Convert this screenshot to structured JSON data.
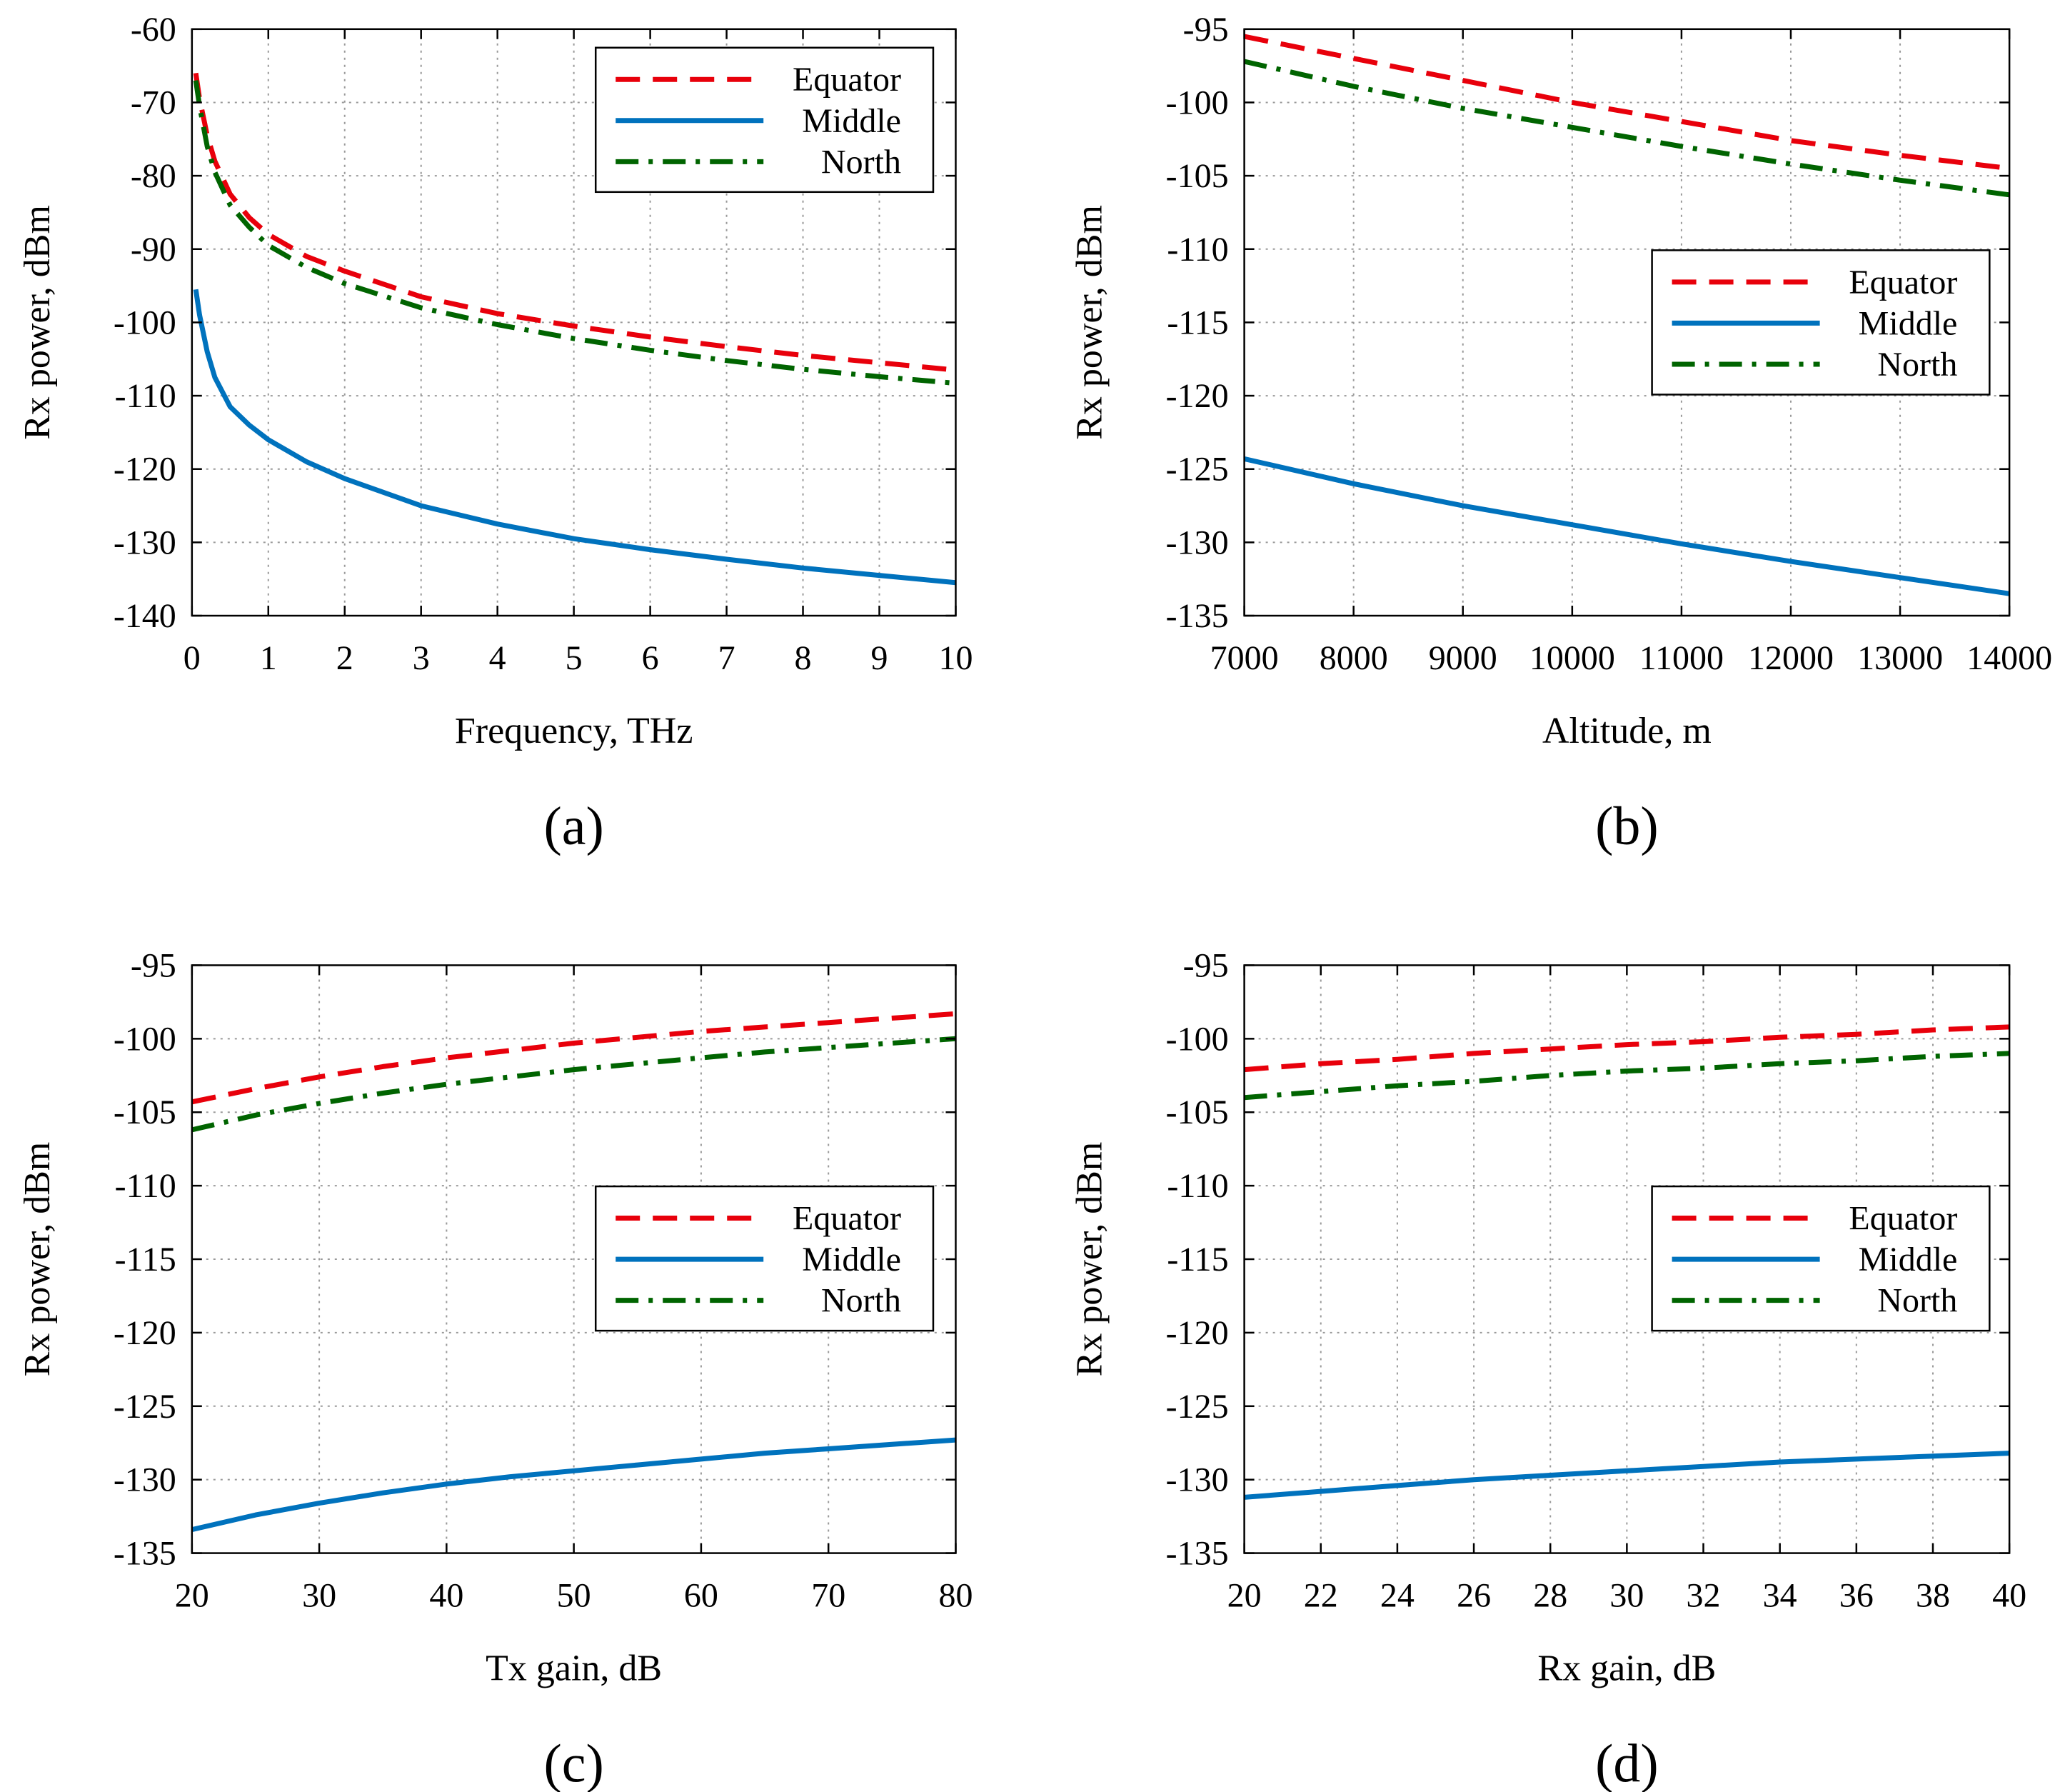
{
  "colors": {
    "equator": "#e8000b",
    "middle": "#0072bd",
    "north": "#006400"
  },
  "chart_data": [
    {
      "type": "line",
      "panel_label": "(a)",
      "xlabel": "Frequency, THz",
      "ylabel": "Rx power, dBm",
      "xlim": [
        0,
        10
      ],
      "ylim": [
        -140,
        -60
      ],
      "xticks": [
        0,
        1,
        2,
        3,
        4,
        5,
        6,
        7,
        8,
        9,
        10
      ],
      "yticks": [
        -140,
        -130,
        -120,
        -110,
        -100,
        -90,
        -80,
        -70,
        -60
      ],
      "grid": true,
      "legend_position": "top-right",
      "series": [
        {
          "name": "Equator",
          "style": "dashed",
          "color": "equator",
          "x": [
            0.05,
            0.1,
            0.2,
            0.3,
            0.5,
            0.75,
            1,
            1.5,
            2,
            3,
            4,
            5,
            6,
            7,
            8,
            9,
            10
          ],
          "y": [
            -66,
            -69.5,
            -74.5,
            -78,
            -82.5,
            -85.7,
            -88,
            -91,
            -93,
            -96.5,
            -98.8,
            -100.5,
            -102,
            -103.3,
            -104.5,
            -105.5,
            -106.5
          ]
        },
        {
          "name": "Middle",
          "style": "solid",
          "color": "middle",
          "x": [
            0.05,
            0.1,
            0.2,
            0.3,
            0.5,
            0.75,
            1,
            1.5,
            2,
            3,
            4,
            5,
            6,
            7,
            8,
            9,
            10
          ],
          "y": [
            -95.5,
            -99,
            -104,
            -107.5,
            -111.5,
            -114,
            -116,
            -119,
            -121.3,
            -125,
            -127.5,
            -129.5,
            -131,
            -132.3,
            -133.5,
            -134.5,
            -135.5
          ]
        },
        {
          "name": "North",
          "style": "dashdot",
          "color": "north",
          "x": [
            0.05,
            0.1,
            0.2,
            0.3,
            0.5,
            0.75,
            1,
            1.5,
            2,
            3,
            4,
            5,
            6,
            7,
            8,
            9,
            10
          ],
          "y": [
            -67,
            -70.5,
            -76,
            -79.5,
            -84,
            -87,
            -89.5,
            -92.5,
            -94.7,
            -98,
            -100.3,
            -102.2,
            -103.8,
            -105.2,
            -106.4,
            -107.4,
            -108.3
          ]
        }
      ]
    },
    {
      "type": "line",
      "panel_label": "(b)",
      "xlabel": "Altitude, m",
      "ylabel": "Rx power, dBm",
      "xlim": [
        7000,
        14000
      ],
      "ylim": [
        -135,
        -95
      ],
      "xticks": [
        7000,
        8000,
        9000,
        10000,
        11000,
        12000,
        13000,
        14000
      ],
      "yticks": [
        -135,
        -130,
        -125,
        -120,
        -115,
        -110,
        -105,
        -100,
        -95
      ],
      "grid": true,
      "legend_position": "center-right",
      "series": [
        {
          "name": "Equator",
          "style": "dashed",
          "color": "equator",
          "x": [
            7000,
            8000,
            9000,
            10000,
            11000,
            12000,
            13000,
            14000
          ],
          "y": [
            -95.5,
            -97,
            -98.5,
            -100,
            -101.3,
            -102.6,
            -103.6,
            -104.5
          ]
        },
        {
          "name": "Middle",
          "style": "solid",
          "color": "middle",
          "x": [
            7000,
            8000,
            9000,
            10000,
            11000,
            12000,
            13000,
            14000
          ],
          "y": [
            -124.3,
            -126,
            -127.5,
            -128.8,
            -130.1,
            -131.3,
            -132.4,
            -133.5
          ]
        },
        {
          "name": "North",
          "style": "dashdot",
          "color": "north",
          "x": [
            7000,
            8000,
            9000,
            10000,
            11000,
            12000,
            13000,
            14000
          ],
          "y": [
            -97.2,
            -98.9,
            -100.4,
            -101.7,
            -103,
            -104.2,
            -105.3,
            -106.3
          ]
        }
      ]
    },
    {
      "type": "line",
      "panel_label": "(c)",
      "xlabel": "Tx gain, dB",
      "ylabel": "Rx power, dBm",
      "xlim": [
        20,
        80
      ],
      "ylim": [
        -135,
        -95
      ],
      "xticks": [
        20,
        30,
        40,
        50,
        60,
        70,
        80
      ],
      "yticks": [
        -135,
        -130,
        -125,
        -120,
        -115,
        -110,
        -105,
        -100,
        -95
      ],
      "grid": true,
      "legend_position": "center-right",
      "series": [
        {
          "name": "Equator",
          "style": "dashed",
          "color": "equator",
          "x": [
            20,
            25,
            30,
            35,
            40,
            45,
            50,
            55,
            60,
            65,
            70,
            75,
            80
          ],
          "y": [
            -104.3,
            -103.4,
            -102.6,
            -101.9,
            -101.3,
            -100.8,
            -100.3,
            -99.9,
            -99.5,
            -99.2,
            -98.9,
            -98.6,
            -98.3
          ]
        },
        {
          "name": "Middle",
          "style": "solid",
          "color": "middle",
          "x": [
            20,
            25,
            30,
            35,
            40,
            45,
            50,
            55,
            60,
            65,
            70,
            75,
            80
          ],
          "y": [
            -133.4,
            -132.4,
            -131.6,
            -130.9,
            -130.3,
            -129.8,
            -129.4,
            -129,
            -128.6,
            -128.2,
            -127.9,
            -127.6,
            -127.3
          ]
        },
        {
          "name": "North",
          "style": "dashdot",
          "color": "north",
          "x": [
            20,
            25,
            30,
            35,
            40,
            45,
            50,
            55,
            60,
            65,
            70,
            75,
            80
          ],
          "y": [
            -106.2,
            -105.2,
            -104.4,
            -103.7,
            -103.1,
            -102.6,
            -102.1,
            -101.7,
            -101.3,
            -100.9,
            -100.6,
            -100.3,
            -100
          ]
        }
      ]
    },
    {
      "type": "line",
      "panel_label": "(d)",
      "xlabel": "Rx gain, dB",
      "ylabel": "Rx power, dBm",
      "xlim": [
        20,
        40
      ],
      "ylim": [
        -135,
        -95
      ],
      "xticks": [
        20,
        22,
        24,
        26,
        28,
        30,
        32,
        34,
        36,
        38,
        40
      ],
      "yticks": [
        -135,
        -130,
        -125,
        -120,
        -115,
        -110,
        -105,
        -100,
        -95
      ],
      "grid": true,
      "legend_position": "center-right",
      "series": [
        {
          "name": "Equator",
          "style": "dashed",
          "color": "equator",
          "x": [
            20,
            22,
            24,
            26,
            28,
            30,
            32,
            34,
            36,
            38,
            40
          ],
          "y": [
            -102.1,
            -101.7,
            -101.4,
            -101,
            -100.7,
            -100.4,
            -100.2,
            -99.9,
            -99.7,
            -99.4,
            -99.2
          ]
        },
        {
          "name": "Middle",
          "style": "solid",
          "color": "middle",
          "x": [
            20,
            22,
            24,
            26,
            28,
            30,
            32,
            34,
            36,
            38,
            40
          ],
          "y": [
            -131.2,
            -130.8,
            -130.4,
            -130,
            -129.7,
            -129.4,
            -129.1,
            -128.8,
            -128.6,
            -128.4,
            -128.2
          ]
        },
        {
          "name": "North",
          "style": "dashdot",
          "color": "north",
          "x": [
            20,
            22,
            24,
            26,
            28,
            30,
            32,
            34,
            36,
            38,
            40
          ],
          "y": [
            -104,
            -103.6,
            -103.2,
            -102.9,
            -102.5,
            -102.2,
            -102,
            -101.7,
            -101.5,
            -101.2,
            -101
          ]
        }
      ]
    }
  ]
}
